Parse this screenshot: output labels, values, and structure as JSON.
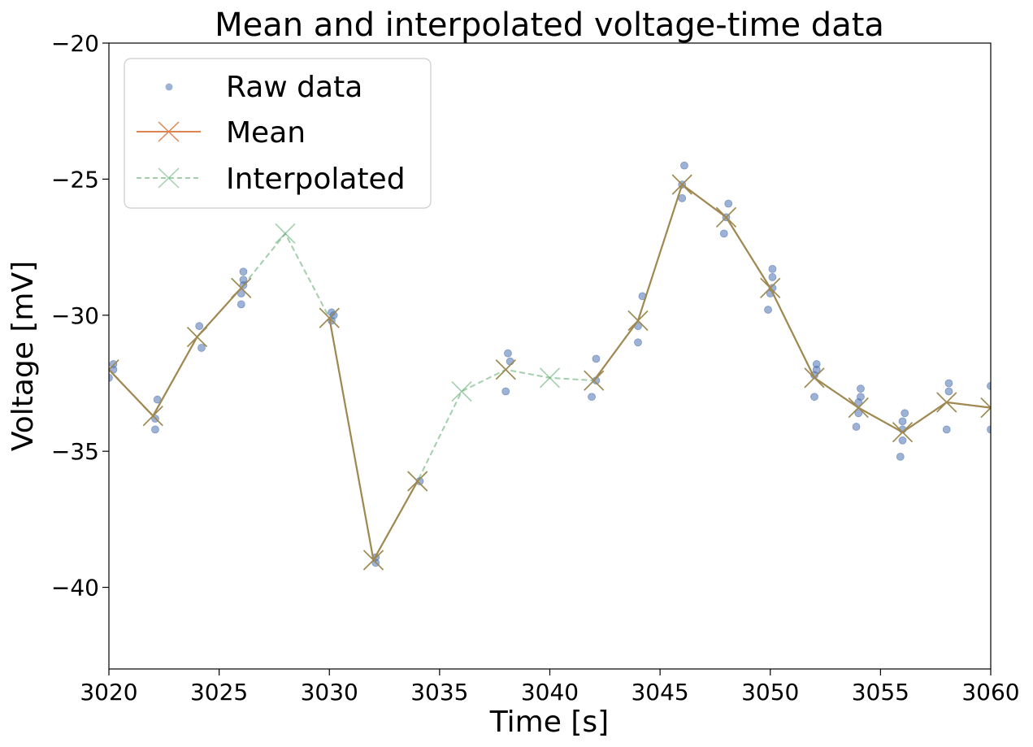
{
  "chart_data": {
    "type": "line",
    "title": "Mean and interpolated voltage-time data",
    "xlabel": "Time [s]",
    "ylabel": "Voltage [mV]",
    "xlim": [
      3020,
      3060
    ],
    "ylim": [
      -43,
      -20
    ],
    "xticks": [
      3020,
      3025,
      3030,
      3035,
      3040,
      3045,
      3050,
      3055,
      3060
    ],
    "yticks": [
      -40,
      -35,
      -30,
      -25,
      -20
    ],
    "ytick_labels": [
      "−40",
      "−35",
      "−30",
      "−25",
      "−20"
    ],
    "grid": false,
    "legend_position": "top-left",
    "colors": {
      "raw": "#4c72b0",
      "mean": "#dd8452",
      "interpolated": "#55a868",
      "overlap": "#a08850"
    },
    "series": [
      {
        "name": "Raw data",
        "style": "scatter",
        "x": [
          3020.2,
          3020.2,
          3020.0,
          3022.2,
          3022.1,
          3022.1,
          3024.1,
          3024.2,
          3026.1,
          3026.1,
          3026.1,
          3026.0,
          3026.0,
          3030.1,
          3030.2,
          3030.1,
          3032.1,
          3032.1,
          3034.1,
          3038.1,
          3038.2,
          3038.0,
          3042.1,
          3042.1,
          3041.9,
          3044.2,
          3044.0,
          3044.0,
          3046.1,
          3046.0,
          3046.0,
          3048.1,
          3048.0,
          3047.9,
          3050.1,
          3050.1,
          3050.1,
          3050.0,
          3049.9,
          3052.1,
          3052.1,
          3052.0,
          3052.0,
          3054.1,
          3054.1,
          3054.0,
          3054.0,
          3053.9,
          3056.1,
          3056.0,
          3056.0,
          3056.0,
          3055.9,
          3058.1,
          3058.1,
          3058.0,
          3060.0,
          3060.0
        ],
        "y": [
          -31.8,
          -32.0,
          -32.3,
          -33.1,
          -33.8,
          -34.2,
          -30.4,
          -31.2,
          -28.4,
          -28.7,
          -28.9,
          -29.2,
          -29.6,
          -29.9,
          -30.0,
          -30.2,
          -38.9,
          -39.1,
          -36.1,
          -31.4,
          -31.7,
          -32.8,
          -31.6,
          -32.4,
          -33.0,
          -29.3,
          -30.4,
          -31.0,
          -24.5,
          -25.2,
          -25.7,
          -25.9,
          -26.4,
          -27.0,
          -28.3,
          -28.6,
          -29.0,
          -29.2,
          -29.8,
          -31.8,
          -32.0,
          -32.2,
          -33.0,
          -32.7,
          -33.0,
          -33.2,
          -33.6,
          -34.1,
          -33.6,
          -33.9,
          -34.2,
          -34.6,
          -35.2,
          -32.5,
          -32.8,
          -34.2,
          -32.6,
          -34.2
        ]
      },
      {
        "name": "Mean",
        "style": "line-x",
        "x": [
          3020,
          3022,
          3024,
          3026,
          3030,
          3032,
          3034,
          3038,
          3042,
          3044,
          3046,
          3048,
          3050,
          3052,
          3054,
          3056,
          3058,
          3060
        ],
        "y": [
          -32.0,
          -33.7,
          -30.8,
          -29.0,
          -30.1,
          -39.0,
          -36.1,
          -32.0,
          -32.4,
          -30.2,
          -25.2,
          -26.4,
          -29.0,
          -32.3,
          -33.4,
          -34.3,
          -33.2,
          -33.4
        ],
        "segments": [
          [
            0,
            1,
            2,
            3
          ],
          [
            4,
            5,
            6
          ],
          [
            8,
            9,
            10,
            11,
            12,
            13,
            14,
            15,
            16,
            17
          ]
        ]
      },
      {
        "name": "Interpolated",
        "style": "dashed-x",
        "x": [
          3020,
          3022,
          3024,
          3026,
          3028,
          3030,
          3032,
          3034,
          3036,
          3038,
          3040,
          3042,
          3044,
          3046,
          3048,
          3050,
          3052,
          3054,
          3056,
          3058,
          3060
        ],
        "y": [
          -32.0,
          -33.7,
          -30.8,
          -29.0,
          -27.0,
          -30.1,
          -39.0,
          -36.1,
          -32.8,
          -32.0,
          -32.3,
          -32.4,
          -30.2,
          -25.2,
          -26.4,
          -29.0,
          -32.3,
          -33.4,
          -34.3,
          -33.2,
          -33.4
        ]
      }
    ]
  }
}
